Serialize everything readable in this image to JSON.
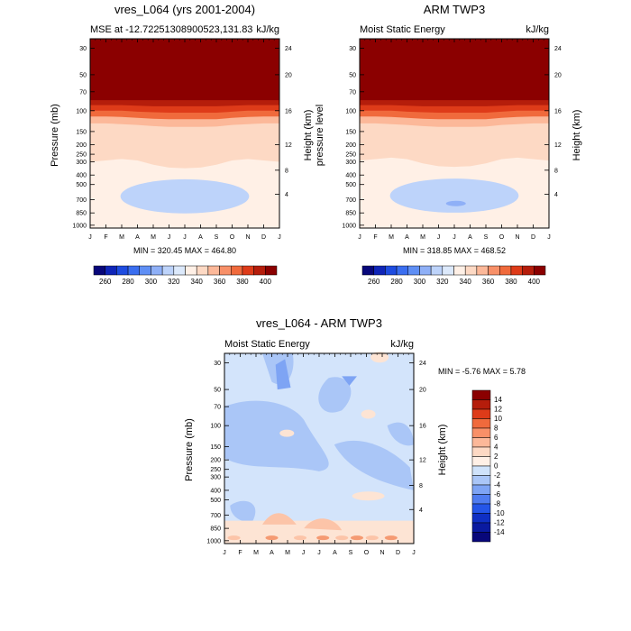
{
  "colors": {
    "bg": "#ffffff",
    "axis": "#000000"
  },
  "chart_data": [
    {
      "id": "model",
      "type": "heatmap",
      "title": "vres_L064 (yrs 2001-2004)",
      "left_label": "MSE at -12.72251308900523,131.83",
      "right_label": "kJ/kg",
      "xlabel": "",
      "ylabel": "Pressure (mb)",
      "ylabel_right": "Height (km)",
      "categories": [
        "J",
        "F",
        "M",
        "A",
        "M",
        "J",
        "J",
        "A",
        "S",
        "O",
        "N",
        "D",
        "J"
      ],
      "y_ticks": [
        "30",
        "50",
        "70",
        "100",
        "150",
        "200",
        "250",
        "300",
        "400",
        "500",
        "700",
        "850",
        "1000"
      ],
      "y_ticks_right": [
        "24",
        "20",
        "16",
        "12",
        "8",
        "4"
      ],
      "ylim_mb": [
        1000,
        20
      ],
      "stats": "MIN = 320.45 MAX = 464.80",
      "layers_by_month_mb": [
        {
          "level": 400,
          "boundary_mb": [
            82,
            82,
            82,
            82,
            82,
            82,
            82,
            82,
            82,
            82,
            82,
            82,
            82
          ]
        },
        {
          "level": 380,
          "boundary_mb": [
            90,
            90,
            90,
            91,
            92,
            92,
            92,
            92,
            92,
            91,
            90,
            90,
            90
          ]
        },
        {
          "level": 370,
          "boundary_mb": [
            100,
            100,
            100,
            102,
            103,
            104,
            104,
            104,
            104,
            102,
            100,
            100,
            100
          ]
        },
        {
          "level": 360,
          "boundary_mb": [
            112,
            112,
            113,
            115,
            117,
            118,
            118,
            118,
            118,
            115,
            113,
            112,
            112
          ]
        },
        {
          "level": 350,
          "boundary_mb": [
            128,
            128,
            130,
            132,
            135,
            137,
            137,
            137,
            136,
            132,
            130,
            128,
            128
          ]
        },
        {
          "level": 340,
          "boundary_mb": [
            300,
            290,
            280,
            290,
            320,
            340,
            345,
            340,
            320,
            290,
            280,
            290,
            300
          ]
        },
        {
          "level": 330,
          "boundary_mb": [
            840,
            845,
            850,
            870,
            1000,
            1000,
            1000,
            1000,
            1000,
            880,
            850,
            845,
            840
          ]
        }
      ],
      "min_feature": {
        "label": "320-330 region",
        "center_month": 6,
        "center_mb": 650
      }
    },
    {
      "id": "obs",
      "type": "heatmap",
      "title": "ARM TWP3",
      "left_label": "Moist Static Energy",
      "right_label": "kJ/kg",
      "xlabel": "",
      "ylabel": "pressure level",
      "ylabel_right": "Height (km)",
      "categories": [
        "J",
        "F",
        "M",
        "A",
        "M",
        "J",
        "J",
        "A",
        "S",
        "O",
        "N",
        "D",
        "J"
      ],
      "y_ticks": [
        "30",
        "50",
        "70",
        "100",
        "150",
        "200",
        "250",
        "300",
        "400",
        "500",
        "700",
        "850",
        "1000"
      ],
      "y_ticks_right": [
        "24",
        "20",
        "16",
        "12",
        "8",
        "4"
      ],
      "stats": "MIN = 318.85 MAX = 468.52"
    },
    {
      "id": "diff",
      "type": "heatmap",
      "title": "vres_L064 - ARM TWP3",
      "left_label": "Moist Static Energy",
      "right_label": "kJ/kg",
      "xlabel": "",
      "ylabel": "Pressure (mb)",
      "ylabel_right": "Height (km)",
      "categories": [
        "J",
        "F",
        "M",
        "A",
        "M",
        "J",
        "J",
        "A",
        "S",
        "O",
        "N",
        "D",
        "J"
      ],
      "y_ticks": [
        "30",
        "50",
        "70",
        "100",
        "150",
        "200",
        "250",
        "300",
        "400",
        "500",
        "700",
        "850",
        "1000"
      ],
      "y_ticks_right": [
        "24",
        "20",
        "16",
        "12",
        "8",
        "4"
      ],
      "stats": "MIN =  -5.76 MAX =   5.78",
      "levels": [
        -14,
        -12,
        -10,
        -8,
        -6,
        -4,
        -2,
        0,
        2,
        4,
        6,
        8,
        10,
        12,
        14
      ]
    }
  ],
  "colorbar_main": {
    "labels": [
      "260",
      "280",
      "300",
      "320",
      "340",
      "360",
      "380",
      "400"
    ],
    "colors": [
      "#08077a",
      "#0f25b8",
      "#1e4ce0",
      "#3a6ef0",
      "#5f8ff5",
      "#8fb0f7",
      "#bdd3fa",
      "#dce9fb",
      "#fff0e6",
      "#fdd9c4",
      "#fcb899",
      "#f89068",
      "#f06a3c",
      "#de3b19",
      "#b51d0b",
      "#8b0000"
    ]
  },
  "colorbar_diff": {
    "labels": [
      "14",
      "12",
      "10",
      "8",
      "6",
      "4",
      "2",
      "0",
      "-2",
      "-4",
      "-6",
      "-8",
      "-10",
      "-12",
      "-14"
    ],
    "colors": [
      "#8b0000",
      "#b51d0b",
      "#de3b19",
      "#f06a3c",
      "#f89068",
      "#fcb899",
      "#fdd9c4",
      "#fff0e6",
      "#cfe2fa",
      "#aac6f7",
      "#7ea4f4",
      "#4f7cf0",
      "#2455e8",
      "#0f2fc4",
      "#0a1aa0",
      "#08077a"
    ]
  }
}
